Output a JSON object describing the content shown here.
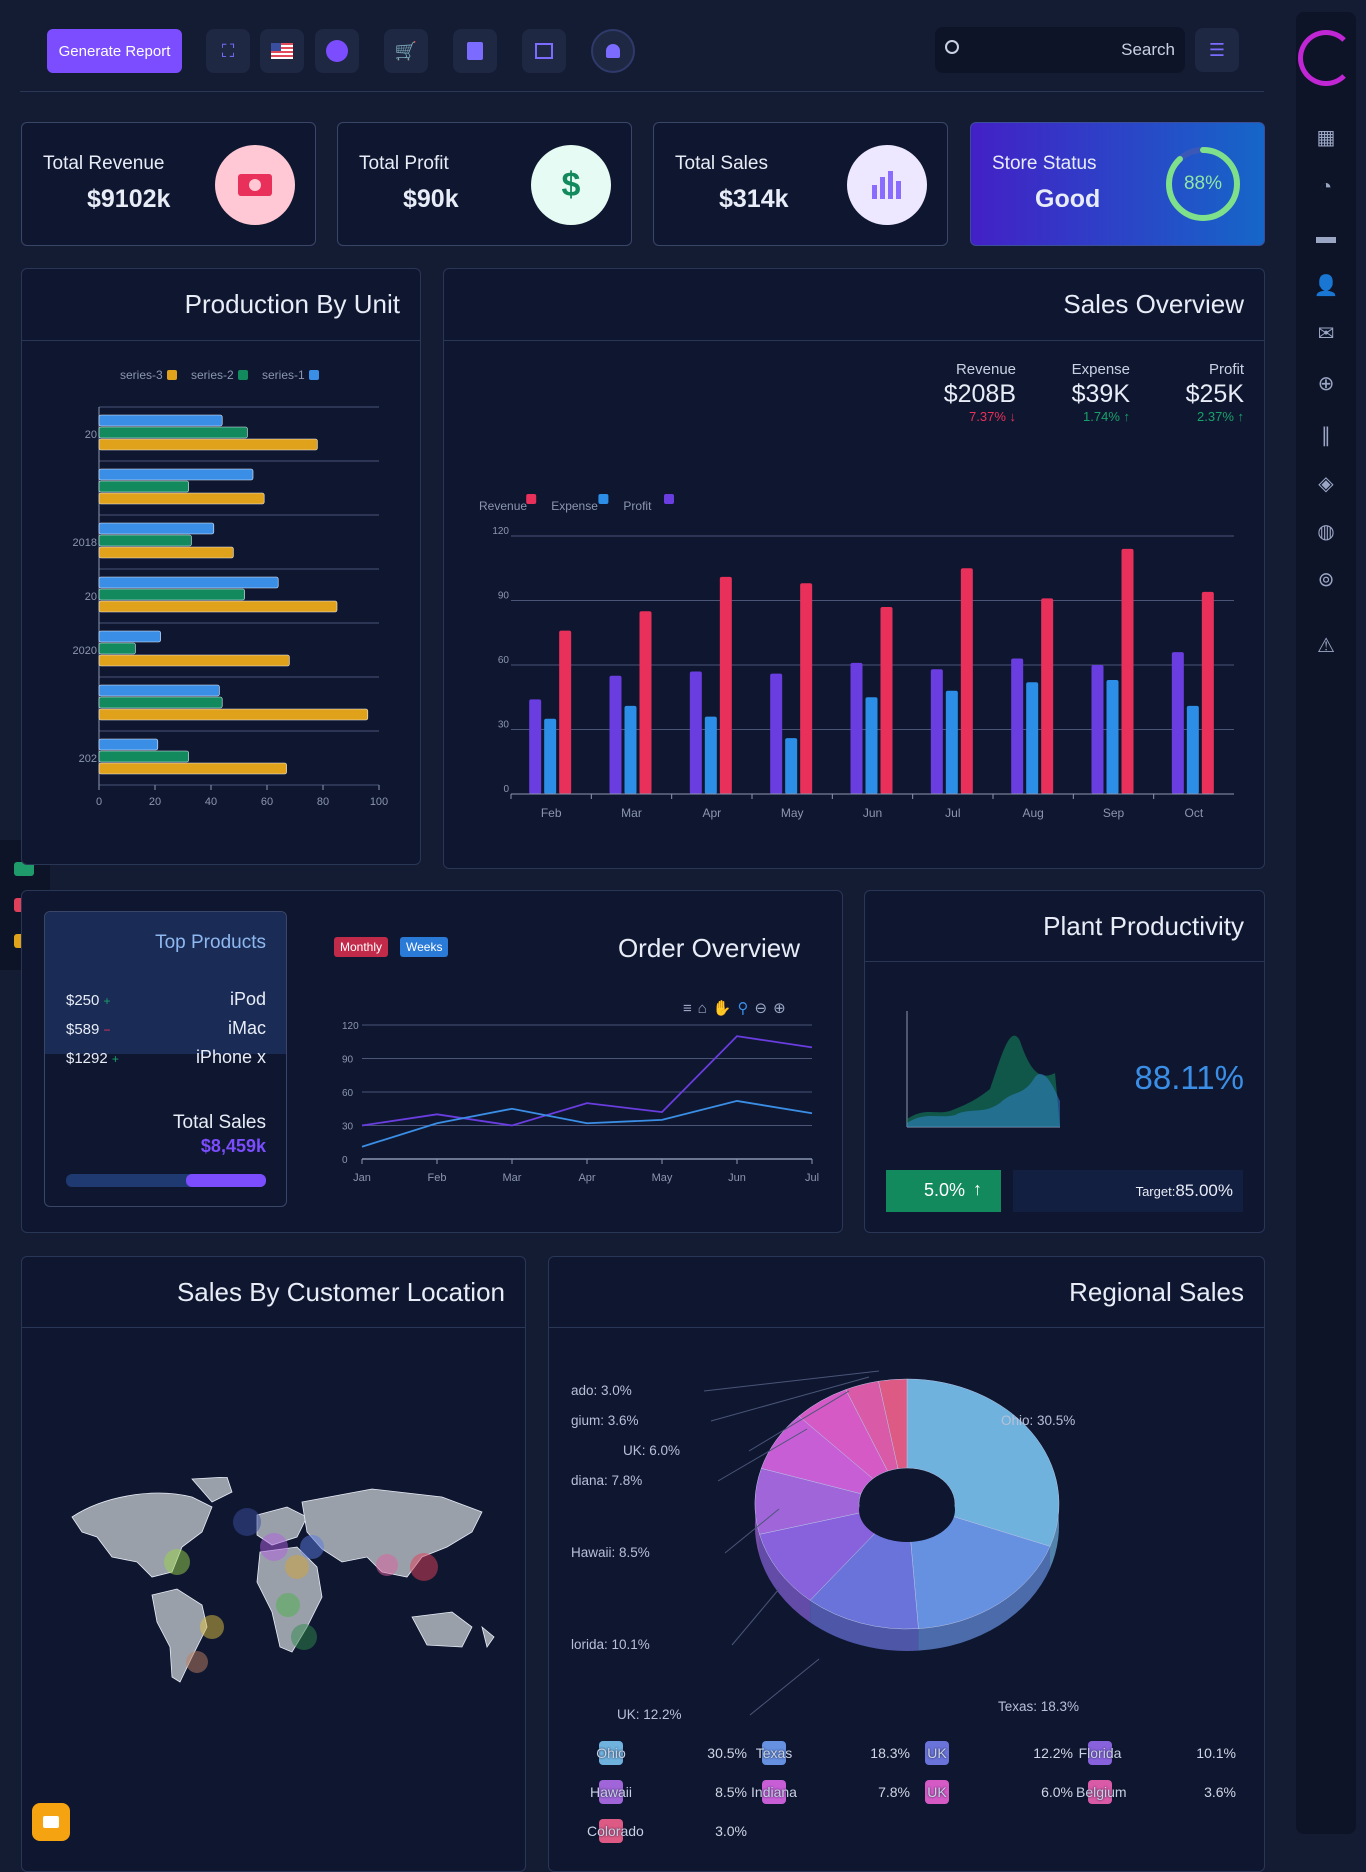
{
  "topbar": {
    "generate_label": "Generate Report",
    "icons": [
      "fullscreen-icon",
      "flag-us-icon",
      "chat-icon",
      "cart-icon",
      "file-icon",
      "layout-icon",
      "bell-icon"
    ],
    "search_value": "Search"
  },
  "kpis": [
    {
      "label": "Total Revenue",
      "value": "$9102k",
      "color": "#ffc8d4",
      "icon": "money-icon",
      "glyph": "▣"
    },
    {
      "label": "Total Profit",
      "value": "$90k",
      "color": "#e6fbf3",
      "icon": "dollar-icon",
      "glyph": "$"
    },
    {
      "label": "Total Sales",
      "value": "$314k",
      "color": "#ede7ff",
      "icon": "bar-chart-icon",
      "glyph": "▮"
    },
    {
      "label": "Store Status",
      "value": "Good",
      "percent": "88%",
      "progress": 88
    }
  ],
  "production": {
    "title": "Production By Unit",
    "chart_data": {
      "type": "bar",
      "orientation": "horizontal",
      "categories": [
        "20",
        "",
        "2018",
        "20",
        "2020",
        "",
        "202"
      ],
      "series": [
        {
          "name": "series-1",
          "color": "#3b8ee6",
          "values": [
            44,
            55,
            41,
            64,
            22,
            43,
            21
          ]
        },
        {
          "name": "series-2",
          "color": "#138a5e",
          "values": [
            53,
            32,
            33,
            52,
            13,
            44,
            32
          ]
        },
        {
          "name": "series-3",
          "color": "#e0a21b",
          "values": [
            78,
            59,
            48,
            85,
            68,
            96,
            67
          ]
        }
      ],
      "xticks": [
        "0",
        "20",
        "40",
        "60",
        "80",
        "100"
      ],
      "xlim": [
        0,
        100
      ],
      "legend": "top"
    }
  },
  "sales_overview": {
    "title": "Sales Overview",
    "stats": [
      {
        "label": "Revenue",
        "value": "$208B",
        "change": "7.37%",
        "dir": "down"
      },
      {
        "label": "Expense",
        "value": "$39K",
        "change": "1.74%",
        "dir": "up"
      },
      {
        "label": "Profit",
        "value": "$25K",
        "change": "2.37%",
        "dir": "up"
      }
    ],
    "chart_data": {
      "type": "bar",
      "categories": [
        "Feb",
        "Mar",
        "Apr",
        "May",
        "Jun",
        "Jul",
        "Aug",
        "Sep",
        "Oct"
      ],
      "series": [
        {
          "name": "Profit",
          "color": "#6a3de0",
          "values": [
            44,
            55,
            57,
            56,
            61,
            58,
            63,
            60,
            66
          ]
        },
        {
          "name": "Expense",
          "color": "#2d8ee8",
          "values": [
            35,
            41,
            36,
            26,
            45,
            48,
            52,
            53,
            41
          ]
        },
        {
          "name": "Revenue",
          "color": "#e8305a",
          "values": [
            76,
            85,
            101,
            98,
            87,
            105,
            91,
            114,
            94
          ]
        }
      ],
      "legend_order": [
        "Revenue",
        "Expense",
        "Profit"
      ],
      "yticks": [
        "0",
        "30",
        "60",
        "90",
        "120"
      ],
      "ylim": [
        0,
        120
      ]
    }
  },
  "top_products": {
    "title": "Top Products",
    "items": [
      {
        "price": "$250",
        "sign": "+",
        "name": "iPod"
      },
      {
        "price": "$589",
        "sign": "−",
        "name": "iMac"
      },
      {
        "price": "$1292",
        "sign": "+",
        "name": "iPhone x"
      }
    ],
    "total_label": "Total Sales",
    "total_value": "$8,459k",
    "progress": 0.4
  },
  "order_overview": {
    "title": "Order Overview",
    "tabs": [
      "Monthly",
      "Weeks"
    ],
    "chart_data": {
      "type": "line",
      "categories": [
        "Jan",
        "Feb",
        "Mar",
        "Apr",
        "May",
        "Jun",
        "Jul"
      ],
      "series": [
        {
          "name": "",
          "color": "#6a3de0",
          "values": [
            30,
            40,
            30,
            50,
            42,
            110,
            100
          ]
        },
        {
          "name": "",
          "color": "#3b8ee6",
          "values": [
            11,
            32,
            45,
            32,
            35,
            52,
            41
          ]
        }
      ],
      "yticks": [
        "0",
        "30",
        "60",
        "90",
        "120"
      ],
      "ylim": [
        0,
        120
      ]
    }
  },
  "plant": {
    "title": "Plant Productivity",
    "percent": "88.11%",
    "change": "5.0%",
    "target_label": "Target:",
    "target_value": "85.00%"
  },
  "location": {
    "title": "Sales By Customer Location"
  },
  "regional": {
    "title": "Regional Sales",
    "chart_data": {
      "type": "pie",
      "donut": true,
      "slices": [
        {
          "label": "Ohio",
          "value": 30.5,
          "color": "#6fb2de"
        },
        {
          "label": "Texas",
          "value": 18.3,
          "color": "#6690e0"
        },
        {
          "label": "UK",
          "value": 12.2,
          "color": "#6a73da"
        },
        {
          "label": "Florida",
          "value": 10.1,
          "color": "#8862dc"
        },
        {
          "label": "Hawaii",
          "value": 8.5,
          "color": "#a065d8"
        },
        {
          "label": "Indiana",
          "value": 7.8,
          "color": "#c85ed6"
        },
        {
          "label": "UK",
          "value": 6.0,
          "color": "#d65ac6"
        },
        {
          "label": "Belgium",
          "value": 3.6,
          "color": "#d95aa6"
        },
        {
          "label": "Colorado",
          "value": 3.0,
          "color": "#dd5a84"
        }
      ],
      "callouts": [
        {
          "text": "ado: 3.0%"
        },
        {
          "text": "gium: 3.6%"
        },
        {
          "text": "UK: 6.0%"
        },
        {
          "text": "diana: 7.8%"
        },
        {
          "text": "Hawaii: 8.5%"
        },
        {
          "text": "lorida: 10.1%"
        },
        {
          "text": "UK: 12.2%"
        },
        {
          "text": "Texas: 18.3%"
        },
        {
          "text": "Ohio: 30.5%"
        }
      ],
      "legend_rows": [
        [
          {
            "name": "Ohio",
            "pct": "30.5%",
            "color": "#6fb2de"
          },
          {
            "name": "Texas",
            "pct": "18.3%",
            "color": "#6690e0"
          },
          {
            "name": "UK",
            "pct": "12.2%",
            "color": "#6a73da"
          },
          {
            "name": "Florida",
            "pct": "10.1%",
            "color": "#8862dc"
          }
        ],
        [
          {
            "name": "Hawaii",
            "pct": "8.5%",
            "color": "#a065d8"
          },
          {
            "name": "Indiana",
            "pct": "7.8%",
            "color": "#c85ed6"
          },
          {
            "name": "UK",
            "pct": "6.0%",
            "color": "#d65ac6"
          },
          {
            "name": "Belgium",
            "pct": "3.6%",
            "color": "#d95aa6"
          }
        ],
        [
          {
            "name": "Colorado",
            "pct": "3.0%",
            "color": "#dd5a84"
          }
        ]
      ]
    }
  }
}
